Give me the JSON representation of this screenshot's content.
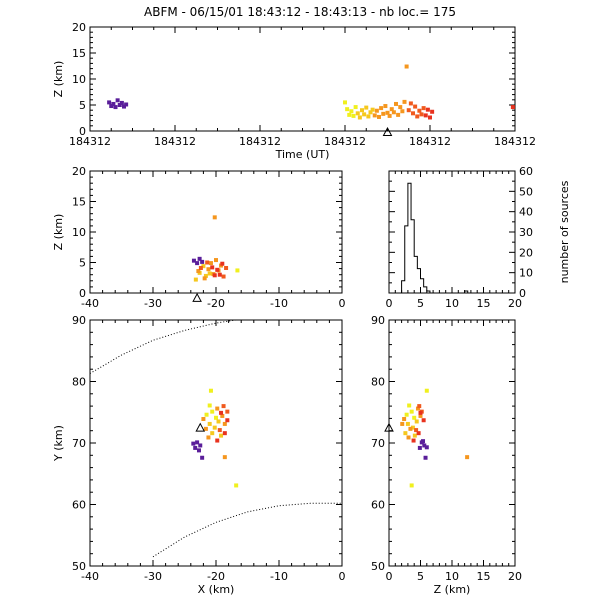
{
  "title": "ABFM - 06/15/01 18:43:12 - 18:43:13 - nb loc.= 175",
  "colors": {
    "axis": "#000000",
    "purple": "#5a1e9a",
    "red": "#e8321e",
    "orange_red": "#f05a1e",
    "orange": "#f5961e",
    "yellow_orange": "#f5c81e",
    "yellow": "#f0f01e"
  },
  "chart_data": [
    {
      "id": "time_height",
      "type": "scatter",
      "xlabel": "Time (UT)",
      "ylabel": "Z (km)",
      "ylim": [
        0,
        20
      ],
      "yticks": [
        0,
        5,
        10,
        15,
        20
      ],
      "xtick_labels": [
        "184312",
        "184312",
        "184312",
        "184312",
        "184312",
        "184312"
      ],
      "xlim": [
        0,
        1
      ],
      "station_marker_x": 0.7,
      "points": [
        {
          "x": 0.045,
          "y": 5.5,
          "c": "purple"
        },
        {
          "x": 0.05,
          "y": 4.8,
          "c": "purple"
        },
        {
          "x": 0.055,
          "y": 5.2,
          "c": "purple"
        },
        {
          "x": 0.06,
          "y": 4.6,
          "c": "purple"
        },
        {
          "x": 0.065,
          "y": 5.9,
          "c": "purple"
        },
        {
          "x": 0.07,
          "y": 5.0,
          "c": "purple"
        },
        {
          "x": 0.075,
          "y": 5.4,
          "c": "purple"
        },
        {
          "x": 0.08,
          "y": 4.7,
          "c": "purple"
        },
        {
          "x": 0.085,
          "y": 5.1,
          "c": "purple"
        },
        {
          "x": 0.6,
          "y": 5.5,
          "c": "yellow"
        },
        {
          "x": 0.605,
          "y": 4.2,
          "c": "yellow"
        },
        {
          "x": 0.61,
          "y": 3.1,
          "c": "yellow"
        },
        {
          "x": 0.615,
          "y": 3.8,
          "c": "yellow"
        },
        {
          "x": 0.62,
          "y": 2.9,
          "c": "yellow"
        },
        {
          "x": 0.625,
          "y": 4.6,
          "c": "yellow"
        },
        {
          "x": 0.63,
          "y": 3.4,
          "c": "yellow_orange"
        },
        {
          "x": 0.635,
          "y": 2.6,
          "c": "yellow_orange"
        },
        {
          "x": 0.64,
          "y": 4.0,
          "c": "yellow_orange"
        },
        {
          "x": 0.645,
          "y": 3.2,
          "c": "yellow_orange"
        },
        {
          "x": 0.65,
          "y": 4.5,
          "c": "yellow_orange"
        },
        {
          "x": 0.655,
          "y": 2.8,
          "c": "yellow_orange"
        },
        {
          "x": 0.66,
          "y": 3.6,
          "c": "yellow_orange"
        },
        {
          "x": 0.665,
          "y": 4.1,
          "c": "yellow_orange"
        },
        {
          "x": 0.67,
          "y": 3.0,
          "c": "orange"
        },
        {
          "x": 0.675,
          "y": 3.9,
          "c": "orange"
        },
        {
          "x": 0.68,
          "y": 2.7,
          "c": "orange"
        },
        {
          "x": 0.685,
          "y": 4.4,
          "c": "orange"
        },
        {
          "x": 0.69,
          "y": 3.3,
          "c": "orange"
        },
        {
          "x": 0.695,
          "y": 4.8,
          "c": "orange"
        },
        {
          "x": 0.7,
          "y": 3.5,
          "c": "orange"
        },
        {
          "x": 0.705,
          "y": 2.9,
          "c": "orange"
        },
        {
          "x": 0.71,
          "y": 4.2,
          "c": "orange"
        },
        {
          "x": 0.715,
          "y": 3.6,
          "c": "orange"
        },
        {
          "x": 0.72,
          "y": 5.2,
          "c": "orange"
        },
        {
          "x": 0.725,
          "y": 3.1,
          "c": "orange"
        },
        {
          "x": 0.73,
          "y": 4.6,
          "c": "orange"
        },
        {
          "x": 0.735,
          "y": 3.8,
          "c": "orange"
        },
        {
          "x": 0.74,
          "y": 5.6,
          "c": "orange"
        },
        {
          "x": 0.745,
          "y": 12.4,
          "c": "orange"
        },
        {
          "x": 0.75,
          "y": 4.0,
          "c": "orange_red"
        },
        {
          "x": 0.755,
          "y": 5.3,
          "c": "orange_red"
        },
        {
          "x": 0.76,
          "y": 3.4,
          "c": "orange_red"
        },
        {
          "x": 0.765,
          "y": 4.7,
          "c": "orange_red"
        },
        {
          "x": 0.77,
          "y": 2.8,
          "c": "orange_red"
        },
        {
          "x": 0.775,
          "y": 3.9,
          "c": "orange_red"
        },
        {
          "x": 0.78,
          "y": 3.2,
          "c": "orange_red"
        },
        {
          "x": 0.785,
          "y": 4.4,
          "c": "orange_red"
        },
        {
          "x": 0.79,
          "y": 3.0,
          "c": "red"
        },
        {
          "x": 0.795,
          "y": 4.1,
          "c": "red"
        },
        {
          "x": 0.8,
          "y": 2.6,
          "c": "red"
        },
        {
          "x": 0.805,
          "y": 3.7,
          "c": "red"
        },
        {
          "x": 0.995,
          "y": 4.6,
          "c": "red"
        }
      ]
    },
    {
      "id": "x_height",
      "type": "scatter",
      "ylabel": "Z (km)",
      "xlim": [
        -40,
        0
      ],
      "ylim": [
        0,
        20
      ],
      "xticks": [
        -40,
        -30,
        -20,
        -10,
        0
      ],
      "yticks": [
        0,
        5,
        10,
        15,
        20
      ],
      "station_marker": {
        "x": -23,
        "y": -0.8
      },
      "points": [
        {
          "x": -23.5,
          "y": 5.3,
          "c": "purple"
        },
        {
          "x": -23.0,
          "y": 4.9,
          "c": "purple"
        },
        {
          "x": -22.6,
          "y": 5.6,
          "c": "purple"
        },
        {
          "x": -22.2,
          "y": 5.1,
          "c": "purple"
        },
        {
          "x": -23.2,
          "y": 2.2,
          "c": "yellow_orange"
        },
        {
          "x": -22.6,
          "y": 3.3,
          "c": "yellow_orange"
        },
        {
          "x": -22.0,
          "y": 4.4,
          "c": "yellow_orange"
        },
        {
          "x": -21.6,
          "y": 2.8,
          "c": "yellow_orange"
        },
        {
          "x": -21.2,
          "y": 3.9,
          "c": "orange"
        },
        {
          "x": -20.8,
          "y": 4.9,
          "c": "orange"
        },
        {
          "x": -20.4,
          "y": 3.1,
          "c": "orange"
        },
        {
          "x": -20.0,
          "y": 5.4,
          "c": "orange"
        },
        {
          "x": -19.6,
          "y": 3.7,
          "c": "orange"
        },
        {
          "x": -19.2,
          "y": 4.5,
          "c": "orange"
        },
        {
          "x": -18.8,
          "y": 2.7,
          "c": "orange_red"
        },
        {
          "x": -18.4,
          "y": 4.1,
          "c": "orange_red"
        },
        {
          "x": -22.8,
          "y": 3.6,
          "c": "orange"
        },
        {
          "x": -21.8,
          "y": 2.4,
          "c": "orange"
        },
        {
          "x": -21.0,
          "y": 3.2,
          "c": "yellow_orange"
        },
        {
          "x": -20.6,
          "y": 4.2,
          "c": "red"
        },
        {
          "x": -20.2,
          "y": 2.9,
          "c": "red"
        },
        {
          "x": -19.8,
          "y": 3.8,
          "c": "red"
        },
        {
          "x": -19.4,
          "y": 3.0,
          "c": "red"
        },
        {
          "x": -19.0,
          "y": 4.8,
          "c": "red"
        },
        {
          "x": -22.4,
          "y": 4.1,
          "c": "orange_red"
        },
        {
          "x": -21.4,
          "y": 5.0,
          "c": "orange_red"
        },
        {
          "x": -20.2,
          "y": 12.4,
          "c": "orange"
        },
        {
          "x": -16.6,
          "y": 3.7,
          "c": "yellow"
        }
      ]
    },
    {
      "id": "height_histogram",
      "type": "line",
      "ylabel": "number of sources",
      "xlim": [
        0,
        20
      ],
      "ylim": [
        0,
        60
      ],
      "xticks": [
        0,
        5,
        10,
        15,
        20
      ],
      "yticks": [
        0,
        10,
        20,
        30,
        40,
        50,
        60
      ],
      "x": [
        0,
        0.5,
        1,
        1.5,
        2,
        2.5,
        3,
        3.5,
        4,
        4.5,
        5,
        5.5,
        6,
        6.5,
        7,
        7.5,
        8,
        8.5,
        9,
        9.5,
        10,
        10.5,
        11,
        11.5,
        12,
        12.5,
        13,
        13.5,
        14,
        14.5,
        15,
        15.5,
        16,
        16.5,
        17,
        17.5,
        18,
        18.5,
        19,
        19.5
      ],
      "values": [
        0,
        0,
        0,
        0,
        6,
        33,
        54,
        36,
        18,
        12,
        7,
        3,
        1,
        0,
        0,
        0,
        0,
        0,
        0,
        0,
        0,
        0,
        0,
        0,
        1,
        0,
        0,
        0,
        0,
        0,
        0,
        0,
        0,
        0,
        0,
        0,
        0,
        0,
        0,
        0
      ]
    },
    {
      "id": "plan_view",
      "type": "scatter",
      "xlabel": "X (km)",
      "ylabel": "Y (km)",
      "xlim": [
        -40,
        0
      ],
      "ylim": [
        50,
        90
      ],
      "xticks": [
        -40,
        -30,
        -20,
        -10,
        0
      ],
      "yticks": [
        50,
        60,
        70,
        80,
        90
      ],
      "station_marker": {
        "x": -22.5,
        "y": 72.5
      },
      "arcs": [
        [
          [
            -40,
            81.3
          ],
          [
            -35,
            84.3
          ],
          [
            -30,
            86.7
          ],
          [
            -25,
            88.3
          ],
          [
            -20,
            89.5
          ],
          [
            -15,
            90.3
          ],
          [
            -10,
            90.9
          ],
          [
            -5,
            91.2
          ],
          [
            0,
            91.4
          ]
        ],
        [
          [
            -30,
            51.5
          ],
          [
            -25,
            54.7
          ],
          [
            -20,
            57.1
          ],
          [
            -15,
            58.8
          ],
          [
            -10,
            59.8
          ],
          [
            -5,
            60.2
          ],
          [
            0,
            60.2
          ]
        ]
      ],
      "points": [
        {
          "x": -23.0,
          "y": 70.1,
          "c": "purple"
        },
        {
          "x": -22.5,
          "y": 69.6,
          "c": "purple"
        },
        {
          "x": -23.3,
          "y": 69.2,
          "c": "purple"
        },
        {
          "x": -22.7,
          "y": 68.8,
          "c": "purple"
        },
        {
          "x": -22.2,
          "y": 67.6,
          "c": "purple"
        },
        {
          "x": -23.6,
          "y": 69.9,
          "c": "purple"
        },
        {
          "x": -21.0,
          "y": 76.1,
          "c": "yellow"
        },
        {
          "x": -20.6,
          "y": 75.1,
          "c": "yellow"
        },
        {
          "x": -21.5,
          "y": 74.6,
          "c": "yellow"
        },
        {
          "x": -20.0,
          "y": 74.1,
          "c": "yellow"
        },
        {
          "x": -21.0,
          "y": 73.1,
          "c": "yellow_orange"
        },
        {
          "x": -20.2,
          "y": 72.5,
          "c": "yellow_orange"
        },
        {
          "x": -19.6,
          "y": 73.5,
          "c": "yellow_orange"
        },
        {
          "x": -20.6,
          "y": 71.6,
          "c": "yellow_orange"
        },
        {
          "x": -19.2,
          "y": 71.2,
          "c": "yellow_orange"
        },
        {
          "x": -22.0,
          "y": 73.9,
          "c": "orange"
        },
        {
          "x": -21.6,
          "y": 72.3,
          "c": "orange"
        },
        {
          "x": -19.8,
          "y": 75.6,
          "c": "orange"
        },
        {
          "x": -19.0,
          "y": 74.4,
          "c": "orange"
        },
        {
          "x": -18.6,
          "y": 73.1,
          "c": "orange"
        },
        {
          "x": -21.2,
          "y": 70.9,
          "c": "orange"
        },
        {
          "x": -19.4,
          "y": 72.1,
          "c": "orange_red"
        },
        {
          "x": -18.2,
          "y": 75.1,
          "c": "orange_red"
        },
        {
          "x": -18.8,
          "y": 76.0,
          "c": "orange_red"
        },
        {
          "x": -19.8,
          "y": 70.4,
          "c": "red"
        },
        {
          "x": -18.6,
          "y": 71.6,
          "c": "red"
        },
        {
          "x": -18.2,
          "y": 73.7,
          "c": "red"
        },
        {
          "x": -19.2,
          "y": 74.9,
          "c": "red"
        },
        {
          "x": -20.8,
          "y": 78.5,
          "c": "yellow"
        },
        {
          "x": -18.6,
          "y": 67.7,
          "c": "orange"
        },
        {
          "x": -16.8,
          "y": 63.1,
          "c": "yellow"
        }
      ]
    },
    {
      "id": "height_y",
      "type": "scatter",
      "xlabel": "Z (km)",
      "xlim": [
        0,
        20
      ],
      "ylim": [
        50,
        90
      ],
      "xticks": [
        0,
        5,
        10,
        15,
        20
      ],
      "yticks": [
        50,
        60,
        70,
        80,
        90
      ],
      "station_marker": {
        "x": 0,
        "y": 72.5
      },
      "points": [
        {
          "x": 5.2,
          "y": 70.1,
          "c": "purple"
        },
        {
          "x": 5.6,
          "y": 69.6,
          "c": "purple"
        },
        {
          "x": 4.9,
          "y": 69.2,
          "c": "purple"
        },
        {
          "x": 6.0,
          "y": 69.3,
          "c": "purple"
        },
        {
          "x": 5.8,
          "y": 67.6,
          "c": "purple"
        },
        {
          "x": 5.4,
          "y": 70.3,
          "c": "purple"
        },
        {
          "x": 3.2,
          "y": 76.1,
          "c": "yellow"
        },
        {
          "x": 3.6,
          "y": 75.1,
          "c": "yellow"
        },
        {
          "x": 2.8,
          "y": 74.6,
          "c": "yellow"
        },
        {
          "x": 4.0,
          "y": 74.1,
          "c": "yellow"
        },
        {
          "x": 3.0,
          "y": 73.1,
          "c": "yellow_orange"
        },
        {
          "x": 3.8,
          "y": 72.5,
          "c": "yellow_orange"
        },
        {
          "x": 4.4,
          "y": 73.5,
          "c": "yellow_orange"
        },
        {
          "x": 2.6,
          "y": 71.6,
          "c": "yellow_orange"
        },
        {
          "x": 4.1,
          "y": 71.2,
          "c": "yellow_orange"
        },
        {
          "x": 2.4,
          "y": 73.9,
          "c": "orange"
        },
        {
          "x": 3.4,
          "y": 72.3,
          "c": "orange"
        },
        {
          "x": 4.6,
          "y": 75.6,
          "c": "orange"
        },
        {
          "x": 5.0,
          "y": 74.4,
          "c": "orange"
        },
        {
          "x": 2.1,
          "y": 73.1,
          "c": "orange"
        },
        {
          "x": 3.1,
          "y": 70.9,
          "c": "orange"
        },
        {
          "x": 4.3,
          "y": 72.1,
          "c": "orange_red"
        },
        {
          "x": 5.2,
          "y": 75.1,
          "c": "orange_red"
        },
        {
          "x": 4.8,
          "y": 76.0,
          "c": "orange_red"
        },
        {
          "x": 3.9,
          "y": 70.4,
          "c": "red"
        },
        {
          "x": 4.7,
          "y": 71.6,
          "c": "red"
        },
        {
          "x": 5.5,
          "y": 73.7,
          "c": "red"
        },
        {
          "x": 5.0,
          "y": 74.9,
          "c": "red"
        },
        {
          "x": 6.0,
          "y": 78.5,
          "c": "yellow"
        },
        {
          "x": 12.4,
          "y": 67.7,
          "c": "orange"
        },
        {
          "x": 3.6,
          "y": 63.1,
          "c": "yellow"
        }
      ]
    }
  ]
}
